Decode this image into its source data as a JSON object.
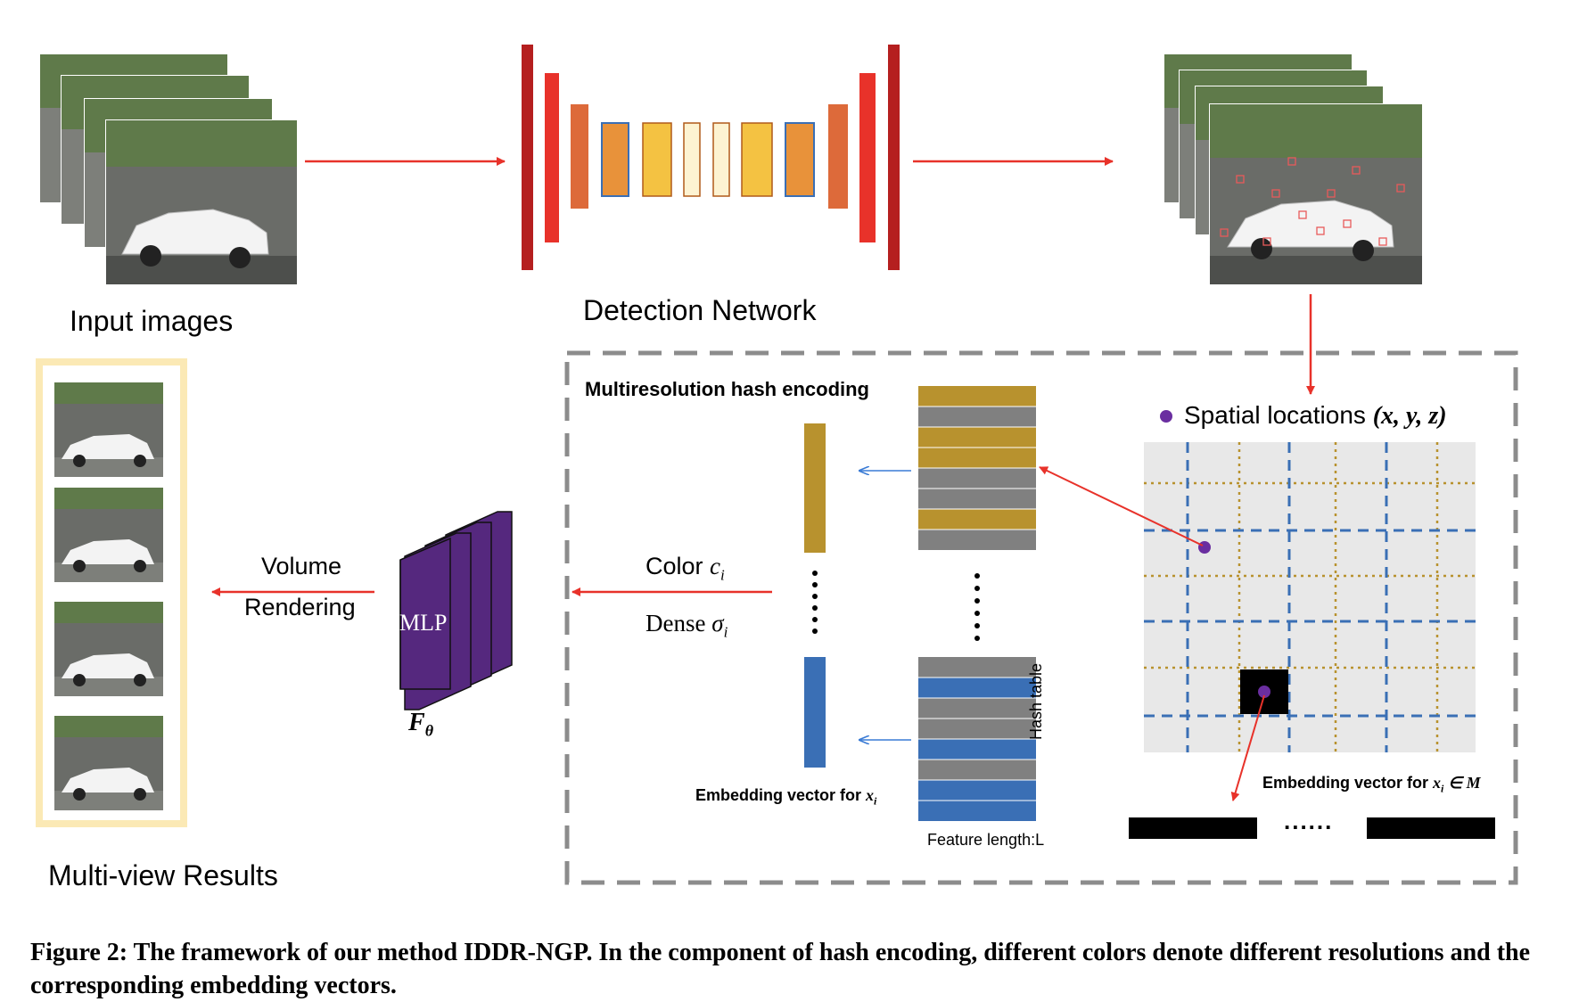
{
  "labels": {
    "input_images": "Input images",
    "detection_network": "Detection Network",
    "multiview_results": "Multi-view Results",
    "hash_encoding_title": "Multiresolution hash encoding",
    "spatial_locations": "Spatial locations",
    "spatial_coords": "(x, y, z)",
    "volume": "Volume",
    "rendering": "Rendering",
    "color_text": "Color",
    "color_var": "c",
    "color_sub": "i",
    "dense_text": "Dense",
    "dense_var": "σ",
    "dense_sub": "i",
    "mlp": "MLP",
    "f_theta": "F",
    "f_theta_sub": "θ",
    "embedding_left": "Embedding vector for",
    "embedding_left_var": "x",
    "embedding_left_sub": "i",
    "embedding_right": "Embedding vector for",
    "embedding_right_math": "∈ M",
    "hash_table": "Hash table",
    "feature_length": "Feature length:L",
    "ellipsis": "......"
  },
  "caption": {
    "text": "Figure 2: The framework of our method IDDR-NGP. In the component of hash encoding, different colors denote different resolutions and the corresponding embedding vectors."
  },
  "colors": {
    "red_arrow": "#e8322a",
    "dark_red": "#b51f1f",
    "bright_red": "#e8322a",
    "orange_red": "#dd6a3a",
    "orange": "#e8923a",
    "yellow": "#f4c242",
    "pale_yellow": "#fdf3d2",
    "gold": "#b8922e",
    "blue": "#3a6fb5",
    "gray": "#808080",
    "purple": "#55287e",
    "cream_border": "#fbe9b5",
    "grid_bg": "#e8e8e8"
  }
}
